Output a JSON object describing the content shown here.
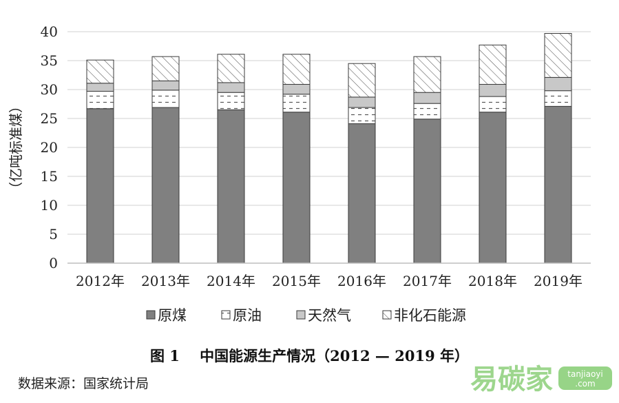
{
  "chart_data": {
    "type": "bar",
    "stacked": true,
    "categories": [
      "2012年",
      "2013年",
      "2014年",
      "2015年",
      "2016年",
      "2017年",
      "2018年",
      "2019年"
    ],
    "series": [
      {
        "name": "原煤",
        "values": [
          26.7,
          26.9,
          26.5,
          26.1,
          24.1,
          24.9,
          26.1,
          27.1
        ],
        "pattern": "solid",
        "color": "#808080"
      },
      {
        "name": "原油",
        "values": [
          3.0,
          3.0,
          3.0,
          3.1,
          2.8,
          2.7,
          2.7,
          2.7
        ],
        "pattern": "dashed",
        "color": "#ffffff"
      },
      {
        "name": "天然气",
        "values": [
          1.4,
          1.6,
          1.7,
          1.7,
          1.8,
          1.9,
          2.1,
          2.3
        ],
        "pattern": "light-gray",
        "color": "#c8c8c8"
      },
      {
        "name": "非化石能源",
        "values": [
          4.0,
          4.2,
          4.9,
          5.2,
          5.8,
          6.2,
          6.8,
          7.6
        ],
        "pattern": "diagonal-hatch",
        "color": "#ffffff"
      }
    ],
    "ylabel": "（亿吨标准煤）",
    "ylim": [
      0,
      40
    ],
    "yticks": [
      "0",
      "5",
      "10",
      "15",
      "20",
      "25",
      "30",
      "35",
      "40"
    ],
    "grid": true,
    "legend_position": "bottom"
  },
  "caption": {
    "figure_label": "图 1",
    "title": "中国能源生产情况（2012 — 2019 年）"
  },
  "source_note": "数据来源：国家统计局",
  "watermark": {
    "text": "易碳家",
    "badge_line1": "tanjiaoyi",
    "badge_line2": ".com"
  }
}
